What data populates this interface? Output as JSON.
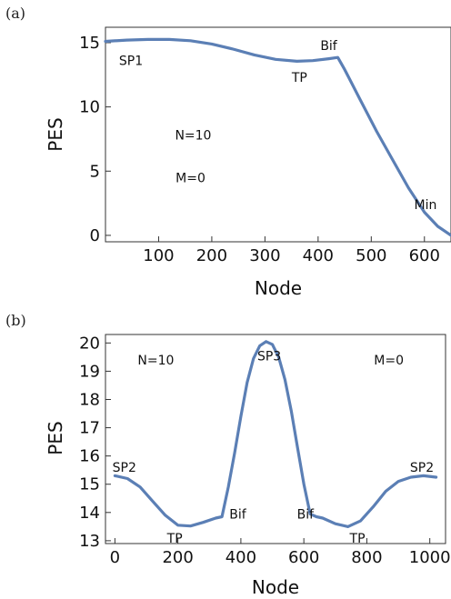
{
  "colors": {
    "curve": "#5b7fb5"
  },
  "chart_data": [
    {
      "type": "line",
      "panel_label": "(a)",
      "xlabel": "Node",
      "ylabel": "PES",
      "xlim": [
        0,
        650
      ],
      "ylim": [
        -0.5,
        16.2
      ],
      "xticks": [
        100,
        200,
        300,
        400,
        500,
        600
      ],
      "yticks": [
        0,
        5,
        10,
        15
      ],
      "series": [
        {
          "x": [
            0,
            40,
            80,
            120,
            160,
            200,
            240,
            280,
            320,
            360,
            390,
            420,
            437,
            450,
            480,
            510,
            540,
            570,
            600,
            625,
            650
          ],
          "y": [
            15.1,
            15.2,
            15.25,
            15.25,
            15.15,
            14.9,
            14.5,
            14.05,
            13.7,
            13.55,
            13.6,
            13.75,
            13.85,
            12.9,
            10.5,
            8.1,
            5.9,
            3.7,
            1.8,
            0.7,
            0.0
          ]
        }
      ],
      "annotations": [
        {
          "text": "SP1",
          "x": 48,
          "y": 13.6
        },
        {
          "text": "TP",
          "x": 365,
          "y": 12.3
        },
        {
          "text": "Bif",
          "x": 420,
          "y": 14.8
        },
        {
          "text": "Min",
          "x": 602,
          "y": 2.4
        },
        {
          "text": "N=10",
          "x": 165,
          "y": 7.8
        },
        {
          "text": "M=0",
          "x": 160,
          "y": 4.5
        }
      ]
    },
    {
      "type": "line",
      "panel_label": "(b)",
      "xlabel": "Node",
      "ylabel": "PES",
      "xlim": [
        -30,
        1050
      ],
      "ylim": [
        12.9,
        20.3
      ],
      "xticks": [
        0,
        200,
        400,
        600,
        800,
        1000
      ],
      "yticks": [
        13,
        14,
        15,
        16,
        17,
        18,
        19,
        20
      ],
      "series": [
        {
          "x": [
            0,
            40,
            80,
            120,
            160,
            200,
            240,
            280,
            320,
            340,
            360,
            380,
            400,
            420,
            440,
            460,
            480,
            500,
            520,
            540,
            560,
            580,
            600,
            620,
            640,
            660,
            700,
            740,
            780,
            820,
            860,
            900,
            940,
            980,
            1020
          ],
          "y": [
            15.3,
            15.2,
            14.9,
            14.4,
            13.9,
            13.55,
            13.52,
            13.65,
            13.8,
            13.85,
            14.9,
            16.1,
            17.4,
            18.6,
            19.45,
            19.9,
            20.05,
            19.95,
            19.5,
            18.7,
            17.6,
            16.3,
            15.0,
            13.95,
            13.85,
            13.8,
            13.6,
            13.5,
            13.7,
            14.2,
            14.75,
            15.1,
            15.25,
            15.3,
            15.25
          ]
        }
      ],
      "annotations": [
        {
          "text": "SP2",
          "x": 30,
          "y": 15.6
        },
        {
          "text": "TP",
          "x": 190,
          "y": 13.1
        },
        {
          "text": "Bif",
          "x": 390,
          "y": 13.95
        },
        {
          "text": "SP3",
          "x": 490,
          "y": 19.55
        },
        {
          "text": "Bif",
          "x": 605,
          "y": 13.95
        },
        {
          "text": "TP",
          "x": 770,
          "y": 13.1
        },
        {
          "text": "SP2",
          "x": 975,
          "y": 15.6
        },
        {
          "text": "N=10",
          "x": 130,
          "y": 19.4
        },
        {
          "text": "M=0",
          "x": 870,
          "y": 19.4
        }
      ]
    }
  ]
}
